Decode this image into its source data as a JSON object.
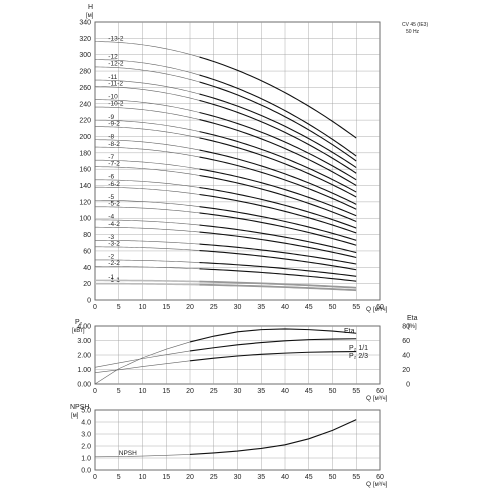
{
  "chart_data": [
    {
      "type": "line",
      "id": "head",
      "title": "CV 45 (IE3)",
      "subtitle": "50 Hz",
      "ylabel": "H",
      "yunit": "[м]",
      "xlabel": "Q",
      "xunit": "[м³/ч]",
      "xlim": [
        0,
        60
      ],
      "ylim": [
        0,
        340
      ],
      "x_ticks": [
        "0",
        "5",
        "10",
        "15",
        "20",
        "25",
        "30",
        "35",
        "40",
        "45",
        "50",
        "55",
        "60"
      ],
      "y_ticks": [
        "0",
        "20",
        "40",
        "60",
        "80",
        "100",
        "120",
        "140",
        "160",
        "180",
        "200",
        "220",
        "240",
        "260",
        "280",
        "300",
        "320",
        "340"
      ],
      "curve_q_max": 55,
      "bold_q_min": 22,
      "series": [
        {
          "name": "-1-1",
          "h0": 20,
          "h55": 12,
          "gray": true
        },
        {
          "name": "-1",
          "h0": 24,
          "h55": 15,
          "gray": true
        },
        {
          "name": "-2-2",
          "h0": 41,
          "h55": 23
        },
        {
          "name": "-2",
          "h0": 49,
          "h55": 29
        },
        {
          "name": "-3-2",
          "h0": 65,
          "h55": 37
        },
        {
          "name": "-3",
          "h0": 73,
          "h55": 44
        },
        {
          "name": "-4-2",
          "h0": 89,
          "h55": 52
        },
        {
          "name": "-4",
          "h0": 98,
          "h55": 58
        },
        {
          "name": "-5-2",
          "h0": 114,
          "h55": 67
        },
        {
          "name": "-5",
          "h0": 122,
          "h55": 73
        },
        {
          "name": "-6-2",
          "h0": 138,
          "h55": 82
        },
        {
          "name": "-6",
          "h0": 147,
          "h55": 88
        },
        {
          "name": "-7-2",
          "h0": 163,
          "h55": 96
        },
        {
          "name": "-7",
          "h0": 171,
          "h55": 103
        },
        {
          "name": "-8-2",
          "h0": 187,
          "h55": 111
        },
        {
          "name": "-8",
          "h0": 196,
          "h55": 117
        },
        {
          "name": "-9-2",
          "h0": 212,
          "h55": 126
        },
        {
          "name": "-9",
          "h0": 220,
          "h55": 132
        },
        {
          "name": "-10-2",
          "h0": 236,
          "h55": 140
        },
        {
          "name": "-10",
          "h0": 245,
          "h55": 147
        },
        {
          "name": "-11-2",
          "h0": 261,
          "h55": 155
        },
        {
          "name": "-11",
          "h0": 269,
          "h55": 162
        },
        {
          "name": "-12-2",
          "h0": 285,
          "h55": 170
        },
        {
          "name": "-12",
          "h0": 294,
          "h55": 176
        },
        {
          "name": "-13-2",
          "h0": 316,
          "h55": 198
        }
      ]
    },
    {
      "type": "line",
      "id": "power",
      "ylabel": "P₂",
      "yunit": "[кВт]",
      "y2label": "Eta",
      "y2unit": "[%]",
      "xlabel": "Q",
      "xunit": "[м³/ч]",
      "xlim": [
        0,
        60
      ],
      "ylim": [
        0,
        4
      ],
      "y2lim": [
        0,
        80
      ],
      "x_ticks": [
        "0",
        "5",
        "10",
        "15",
        "20",
        "25",
        "30",
        "35",
        "40",
        "45",
        "50",
        "55",
        "60"
      ],
      "y_ticks": [
        "0.00",
        "1.00",
        "2.00",
        "3.00",
        "4.00"
      ],
      "y2_ticks": [
        "0",
        "20",
        "40",
        "60",
        "80"
      ],
      "series": [
        {
          "name": "Eta",
          "axis": "right",
          "x": [
            0,
            5,
            10,
            15,
            20,
            25,
            30,
            35,
            40,
            45,
            50,
            55
          ],
          "y": [
            0,
            21,
            36,
            48,
            58,
            66,
            72,
            75,
            76,
            75,
            73,
            70
          ]
        },
        {
          "name": "P₂ 1/1",
          "axis": "left",
          "x": [
            0,
            5,
            10,
            15,
            20,
            25,
            30,
            35,
            40,
            45,
            50,
            55
          ],
          "y": [
            1.15,
            1.45,
            1.75,
            2.02,
            2.28,
            2.5,
            2.7,
            2.86,
            2.98,
            3.06,
            3.1,
            3.12
          ]
        },
        {
          "name": "P₂ 2/3",
          "axis": "left",
          "x": [
            0,
            5,
            10,
            15,
            20,
            25,
            30,
            35,
            40,
            45,
            50,
            55
          ],
          "y": [
            0.78,
            0.98,
            1.2,
            1.4,
            1.6,
            1.78,
            1.93,
            2.05,
            2.13,
            2.19,
            2.22,
            2.24
          ]
        }
      ]
    },
    {
      "type": "line",
      "id": "npsh",
      "ylabel": "NPSH",
      "yunit": "[м]",
      "xlabel": "Q",
      "xunit": "[м³/ч]",
      "xlim": [
        0,
        60
      ],
      "ylim": [
        0,
        5
      ],
      "x_ticks": [
        "0",
        "5",
        "10",
        "15",
        "20",
        "25",
        "30",
        "35",
        "40",
        "45",
        "50",
        "55",
        "60"
      ],
      "y_ticks": [
        "0.0",
        "1.0",
        "2.0",
        "3.0",
        "4.0",
        "5.0"
      ],
      "series": [
        {
          "name": "NPSH",
          "x": [
            0,
            5,
            10,
            15,
            20,
            25,
            30,
            35,
            40,
            45,
            50,
            55
          ],
          "y": [
            1.1,
            1.12,
            1.16,
            1.22,
            1.3,
            1.42,
            1.58,
            1.8,
            2.1,
            2.6,
            3.3,
            4.2
          ]
        }
      ]
    }
  ]
}
